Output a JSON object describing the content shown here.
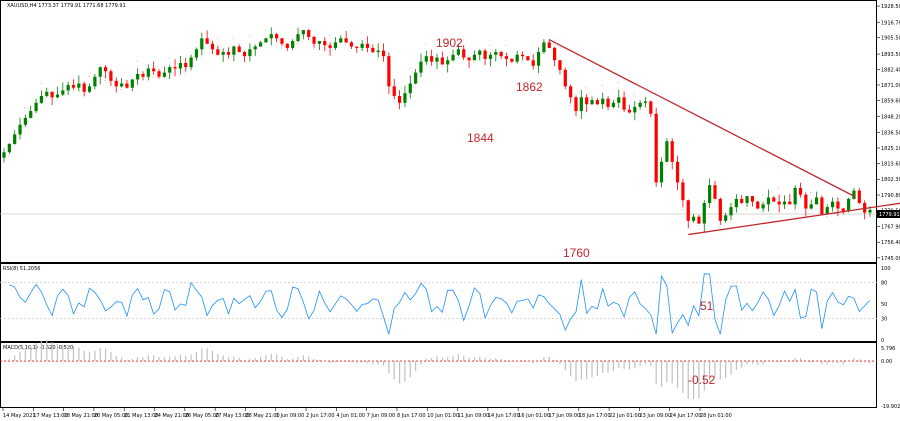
{
  "colors": {
    "bull": "#008000",
    "bear": "#ff0000",
    "trendline": "#c0272d",
    "annotation": "#c0272d",
    "rsi_line": "#1e90ff",
    "macd_hist": "#c0c0c0",
    "macd_signal": "#ff0000",
    "frame": "#000000",
    "level": "#c8c8c8",
    "fractal": "#808080"
  },
  "chart_data": {
    "type": "candlestick",
    "symbol_header": "XAUUSD,H4  1773.37 1779.91 1771.68 1779.91",
    "last_price_label": "1779.91",
    "price_axis": {
      "ylim": [
        1742,
        1930
      ],
      "ticks": [
        "1928.50",
        "1916.70",
        "1905.50",
        "1893.50",
        "1882.40",
        "1871.00",
        "1859.60",
        "1848.20",
        "1836.50",
        "1825.10",
        "1813.60",
        "1802.30",
        "1790.80",
        "1779.50",
        "1767.90",
        "1756.40",
        "1745.00"
      ]
    },
    "time_axis": {
      "labels": [
        "14 May 2021",
        "17 May 13:00",
        "18 May 21:00",
        "20 May 05:00",
        "21 May 13:00",
        "24 May 21:00",
        "26 May 05:00",
        "27 May 13:00",
        "28 May 21:00",
        "1 Jun 09:00",
        "2 Jun 17:00",
        "4 Jun 01:00",
        "7 Jun 09:00",
        "8 Jun 17:00",
        "10 Jun 01:00",
        "11 Jun 09:00",
        "14 Jun 17:00",
        "16 Jun 01:00",
        "17 Jun 09:00",
        "18 Jun 17:00",
        "22 Jun 01:00",
        "23 Jun 09:00",
        "24 Jun 17:00",
        "28 Jun 01:00"
      ]
    },
    "annotations": [
      "1902",
      "1862",
      "1844",
      "1760"
    ],
    "trendlines": [
      {
        "from": {
          "bar": 102,
          "price": 1904
        },
        "to": {
          "bar": 159,
          "price": 1790
        }
      },
      {
        "from": {
          "bar": 128,
          "price": 1762
        },
        "to": {
          "bar": 168,
          "price": 1785
        }
      }
    ],
    "series": [
      {
        "closes": [
          1822,
          1828,
          1835,
          1842,
          1847,
          1852,
          1858,
          1863,
          1866,
          1862,
          1864,
          1867,
          1871,
          1869,
          1872,
          1866,
          1870,
          1877,
          1884,
          1881,
          1874,
          1870,
          1872,
          1869,
          1875,
          1879,
          1877,
          1883,
          1881,
          1877,
          1880,
          1884,
          1883,
          1887,
          1884,
          1891,
          1897,
          1905,
          1901,
          1897,
          1893,
          1895,
          1893,
          1899,
          1895,
          1892,
          1897,
          1899,
          1902,
          1905,
          1908,
          1905,
          1901,
          1898,
          1903,
          1908,
          1911,
          1906,
          1901,
          1903,
          1900,
          1898,
          1902,
          1905,
          1902,
          1899,
          1898,
          1901,
          1898,
          1895,
          1896,
          1892,
          1870,
          1863,
          1858,
          1865,
          1872,
          1880,
          1888,
          1892,
          1888,
          1891,
          1886,
          1889,
          1893,
          1897,
          1891,
          1889,
          1893,
          1896,
          1890,
          1893,
          1895,
          1892,
          1890,
          1888,
          1893,
          1892,
          1889,
          1885,
          1895,
          1902,
          1898,
          1889,
          1882,
          1870,
          1862,
          1852,
          1862,
          1857,
          1860,
          1857,
          1861,
          1855,
          1858,
          1862,
          1853,
          1851,
          1855,
          1858,
          1859,
          1850,
          1800,
          1815,
          1830,
          1815,
          1800,
          1787,
          1772,
          1775,
          1770,
          1785,
          1798,
          1788,
          1772,
          1776,
          1782,
          1788,
          1785,
          1790,
          1786,
          1781,
          1784,
          1789,
          1786,
          1784,
          1786,
          1784,
          1796,
          1791,
          1781,
          1784,
          1789,
          1777,
          1782,
          1786,
          1781,
          1779,
          1788,
          1794,
          1785,
          1778,
          1780
        ],
        "volatility": 6
      }
    ]
  },
  "rsi": {
    "title": "RSI(8) 51.2056",
    "ticks": [
      "100",
      "80",
      "50",
      "30",
      "0"
    ],
    "levels": [
      30,
      80
    ],
    "last_label": "51"
  },
  "macd": {
    "title": "MACD(5,10,1) -0.520 -0.520",
    "ticks": [
      "5.796",
      "0.00",
      "-19.902"
    ],
    "range": [
      -19.902,
      5.796
    ],
    "last_label": "-0.52"
  }
}
